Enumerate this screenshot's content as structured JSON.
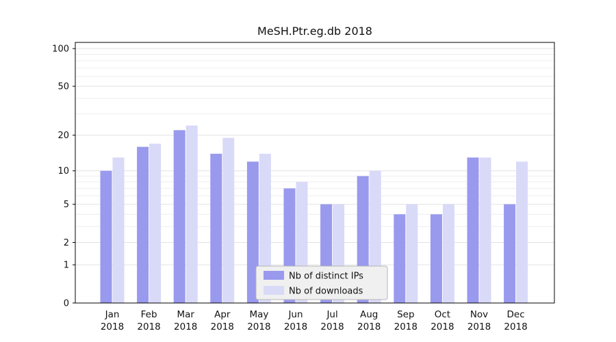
{
  "figure": {
    "title": "MeSH.Ptr.eg.db 2018"
  },
  "chart_data": {
    "type": "bar",
    "title": "MeSH.Ptr.eg.db 2018",
    "categories": [
      "Jan",
      "Feb",
      "Mar",
      "Apr",
      "May",
      "Jun",
      "Jul",
      "Aug",
      "Sep",
      "Oct",
      "Nov",
      "Dec"
    ],
    "category_year": "2018",
    "series": [
      {
        "name": "Nb of distinct IPs",
        "color": "#9999ee",
        "values": [
          10,
          16,
          22,
          14,
          12,
          7,
          5,
          9,
          4,
          4,
          13,
          5
        ]
      },
      {
        "name": "Nb of downloads",
        "color": "#d9d9f8",
        "values": [
          13,
          17,
          24,
          19,
          14,
          8,
          5,
          10,
          5,
          5,
          13,
          12
        ]
      }
    ],
    "xlabel": "",
    "ylabel": "",
    "yscale": "log1p",
    "ylim": [
      0,
      112
    ],
    "yticks": [
      0,
      1,
      2,
      5,
      10,
      20,
      50,
      100
    ],
    "yticks_minor": [
      3,
      4,
      6,
      7,
      8,
      9,
      30,
      40,
      60,
      70,
      80,
      90
    ],
    "grid": "horizontal",
    "grid_color": "#e2e2e2",
    "minor_grid_color": "#eeeeee",
    "axis_color": "#000000",
    "text_color": "#111111",
    "legend_position": "bottom-center",
    "legend_bg": "#f0f0f0",
    "legend_border": "#b5b5b5"
  }
}
